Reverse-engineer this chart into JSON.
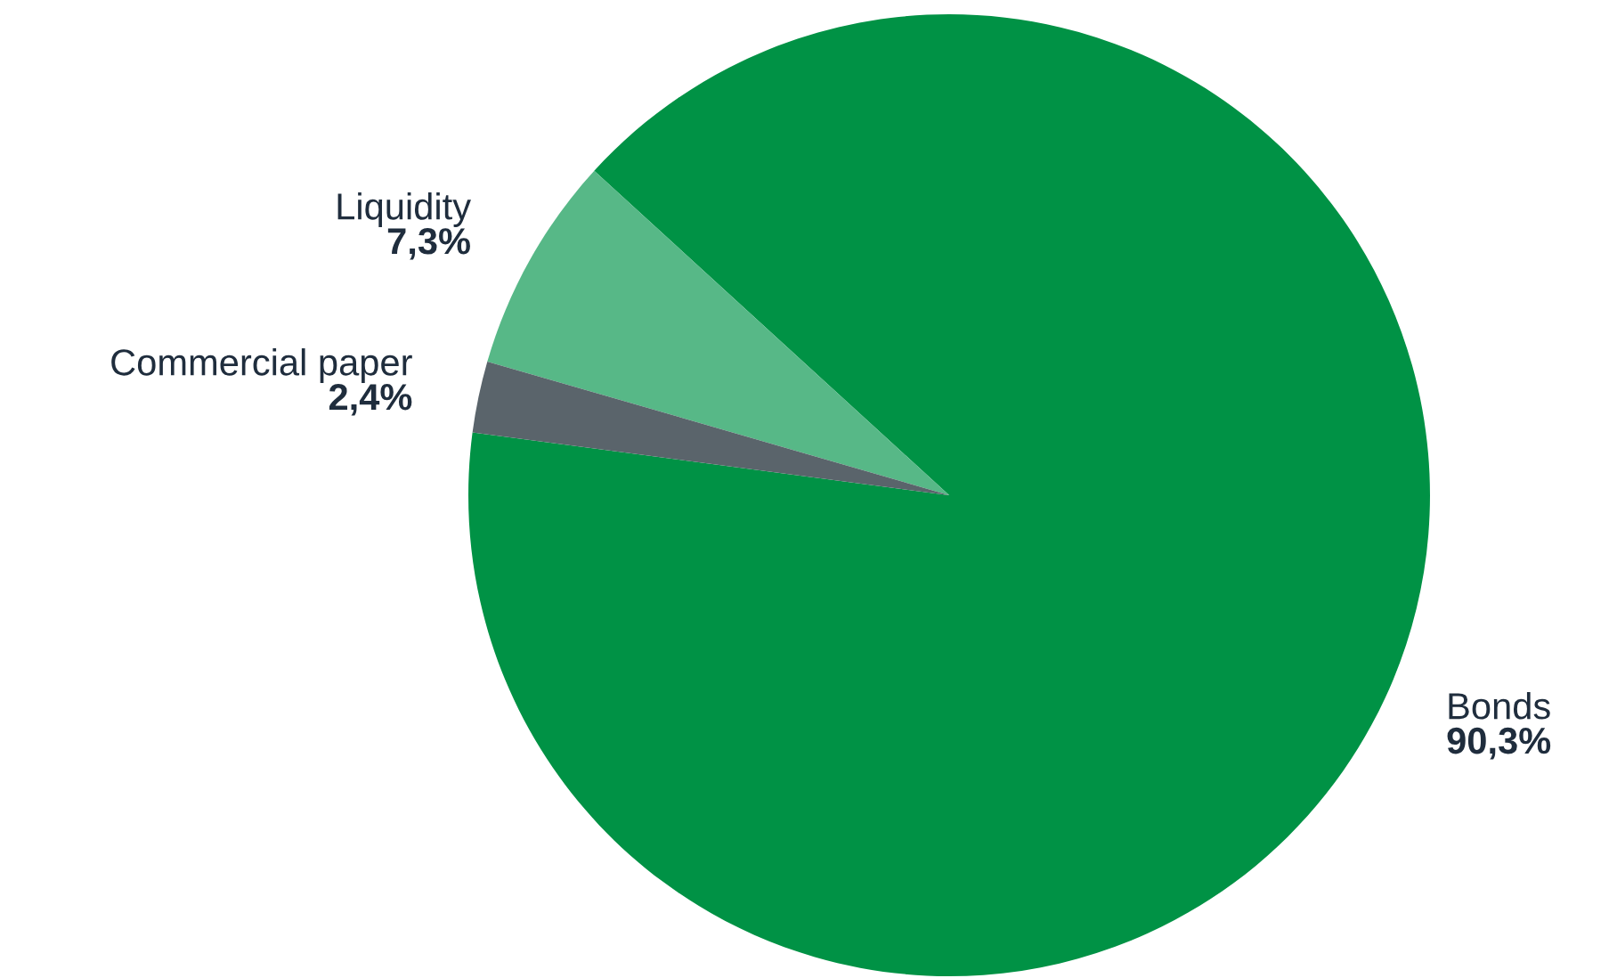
{
  "chart_data": {
    "type": "pie",
    "categories": [
      "Bonds",
      "Liquidity",
      "Commercial paper"
    ],
    "values": [
      90.3,
      7.3,
      2.4
    ],
    "value_labels": [
      "90,3%",
      "7,3%",
      "2,4%"
    ],
    "colors": [
      "#009245",
      "#57b887",
      "#5a646b"
    ],
    "legend": false
  }
}
